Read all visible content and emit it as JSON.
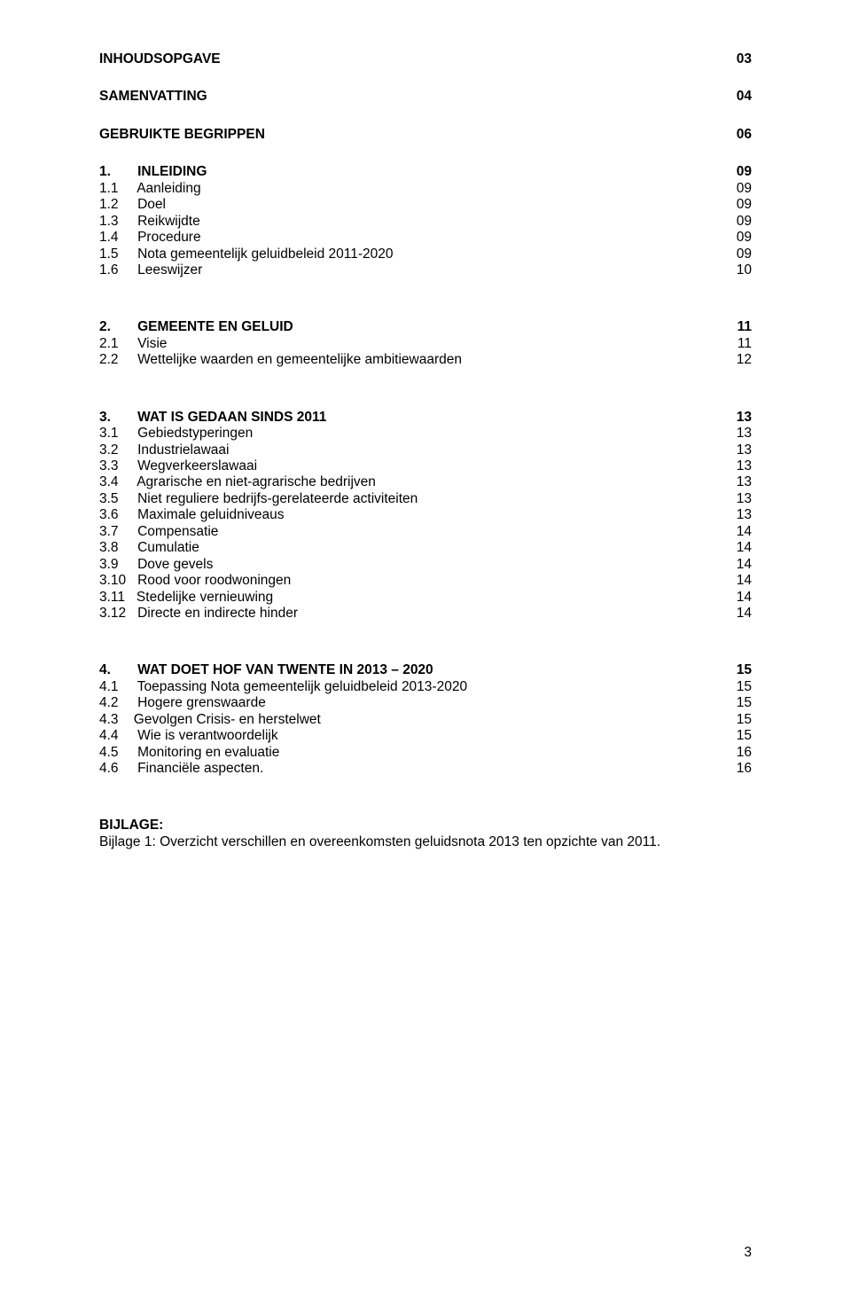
{
  "font_size_pt": 15.5,
  "line_height": 1.19,
  "colors": {
    "text": "#000000",
    "background": "#ffffff"
  },
  "groups": [
    {
      "spacing_after": 24,
      "lines": [
        {
          "bold": true,
          "left": "INHOUDSOPGAVE",
          "right": "03"
        }
      ]
    },
    {
      "spacing_after": 24,
      "lines": [
        {
          "bold": true,
          "left": "SAMENVATTING",
          "right": "04"
        }
      ]
    },
    {
      "spacing_after": 24,
      "lines": [
        {
          "bold": true,
          "left": "GEBRUIKTE BEGRIPPEN",
          "right": "06"
        }
      ]
    },
    {
      "spacing_after": 46,
      "lines": [
        {
          "bold": true,
          "left": "1.       INLEIDING",
          "right": "09"
        },
        {
          "left": "1.1     Aanleiding",
          "right": "09"
        },
        {
          "left": "1.2     Doel",
          "right": "09"
        },
        {
          "left": "1.3     Reikwijdte",
          "right": "09"
        },
        {
          "left": "1.4     Procedure",
          "right": "09"
        },
        {
          "left": "1.5     Nota gemeentelijk geluidbeleid 2011-2020",
          "right": "09"
        },
        {
          "left": "1.6     Leeswijzer",
          "right": "10"
        }
      ]
    },
    {
      "spacing_after": 46,
      "lines": [
        {
          "bold": true,
          "left": "2.       GEMEENTE EN GELUID",
          "right": "11"
        },
        {
          "left": "2.1     Visie",
          "right": "11"
        },
        {
          "left": "2.2     Wettelijke waarden en gemeentelijke ambitiewaarden",
          "right": "12"
        }
      ]
    },
    {
      "spacing_after": 46,
      "lines": [
        {
          "bold": true,
          "left": "3.       WAT IS GEDAAN SINDS 2011",
          "right": "13"
        },
        {
          "left": "3.1     Gebiedstyperingen",
          "right": "13"
        },
        {
          "left": "3.2     Industrielawaai",
          "right": "13"
        },
        {
          "left": "3.3     Wegverkeerslawaai",
          "right": "13"
        },
        {
          "left": "3.4     Agrarische en niet-agrarische bedrijven",
          "right": "13"
        },
        {
          "left": "3.5     Niet reguliere bedrijfs-gerelateerde activiteiten",
          "right": "13"
        },
        {
          "left": "3.6     Maximale geluidniveaus",
          "right": "13"
        },
        {
          "left": "3.7     Compensatie",
          "right": "14"
        },
        {
          "left": "3.8     Cumulatie",
          "right": "14"
        },
        {
          "left": "3.9     Dove gevels",
          "right": "14"
        },
        {
          "left": "3.10   Rood voor roodwoningen",
          "right": "14"
        },
        {
          "left": "3.11   Stedelijke vernieuwing",
          "right": "14"
        },
        {
          "left": "3.12   Directe en indirecte hinder",
          "right": "14"
        }
      ]
    },
    {
      "spacing_after": 46,
      "lines": [
        {
          "bold": true,
          "left": "4.       WAT DOET HOF VAN TWENTE IN 2013 – 2020",
          "right": "15"
        },
        {
          "left": "4.1     Toepassing Nota gemeentelijk geluidbeleid 2013-2020",
          "right": "15"
        },
        {
          "left": "4.2     Hogere grenswaarde",
          "right": "15"
        },
        {
          "left": "4.3    Gevolgen Crisis- en herstelwet",
          "right": "15"
        },
        {
          "left": "4.4     Wie is verantwoordelijk",
          "right": "15"
        },
        {
          "left": "4.5     Monitoring en evaluatie",
          "right": "16"
        },
        {
          "left": "4.6     Financiële aspecten.",
          "right": "16"
        }
      ]
    },
    {
      "spacing_after": 0,
      "lines": [
        {
          "bold": true,
          "left": "BIJLAGE:",
          "right": ""
        },
        {
          "left": "Bijlage 1: Overzicht verschillen en overeenkomsten geluidsnota 2013 ten opzichte van 2011.",
          "right": ""
        }
      ]
    }
  ],
  "page_number": "3"
}
